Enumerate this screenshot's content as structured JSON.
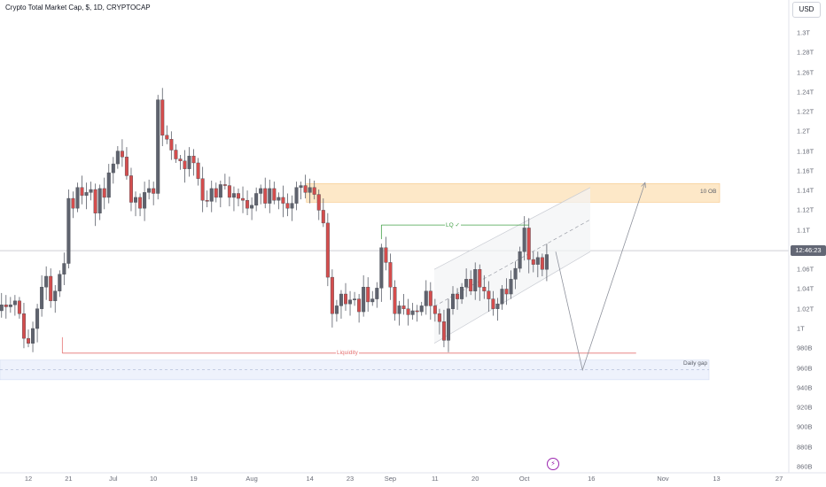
{
  "header": {
    "title": "Crypto Total Market Cap, $, 1D, CRYPTOCAP",
    "currency_button": "USD"
  },
  "price_tag": "12:46:23",
  "icons": {
    "event": "flash-icon"
  },
  "chart_data": {
    "type": "candlestick",
    "title": "Crypto Total Market Cap, $, 1D, CRYPTOCAP",
    "currency": "USD",
    "y_unit": "USD",
    "ylim": [
      855000000000,
      1320000000000
    ],
    "y_ticks": [
      {
        "value": 860000000000,
        "label": "860B"
      },
      {
        "value": 880000000000,
        "label": "880B"
      },
      {
        "value": 900000000000,
        "label": "900B"
      },
      {
        "value": 920000000000,
        "label": "920B"
      },
      {
        "value": 940000000000,
        "label": "940B"
      },
      {
        "value": 960000000000,
        "label": "960B"
      },
      {
        "value": 980000000000,
        "label": "980B"
      },
      {
        "value": 1000000000000,
        "label": "1T"
      },
      {
        "value": 1020000000000,
        "label": "1.02T"
      },
      {
        "value": 1040000000000,
        "label": "1.04T"
      },
      {
        "value": 1060000000000,
        "label": "1.06T"
      },
      {
        "value": 1080000000000,
        "label": "1.08T"
      },
      {
        "value": 1100000000000,
        "label": "1.1T"
      },
      {
        "value": 1120000000000,
        "label": "1.12T"
      },
      {
        "value": 1140000000000,
        "label": "1.14T"
      },
      {
        "value": 1160000000000,
        "label": "1.16T"
      },
      {
        "value": 1180000000000,
        "label": "1.18T"
      },
      {
        "value": 1200000000000,
        "label": "1.2T"
      },
      {
        "value": 1220000000000,
        "label": "1.22T"
      },
      {
        "value": 1240000000000,
        "label": "1.24T"
      },
      {
        "value": 1260000000000,
        "label": "1.26T"
      },
      {
        "value": 1280000000000,
        "label": "1.28T"
      },
      {
        "value": 1300000000000,
        "label": "1.3T"
      }
    ],
    "x_ticks": [
      {
        "date": "2023-06-12",
        "label": "12"
      },
      {
        "date": "2023-06-21",
        "label": "21"
      },
      {
        "date": "2023-07-01",
        "label": "Jul"
      },
      {
        "date": "2023-07-10",
        "label": "10"
      },
      {
        "date": "2023-07-19",
        "label": "19"
      },
      {
        "date": "2023-08-01",
        "label": "Aug"
      },
      {
        "date": "2023-08-14",
        "label": "14"
      },
      {
        "date": "2023-08-23",
        "label": "23"
      },
      {
        "date": "2023-09-01",
        "label": "Sep"
      },
      {
        "date": "2023-09-11",
        "label": "11"
      },
      {
        "date": "2023-09-20",
        "label": "20"
      },
      {
        "date": "2023-10-01",
        "label": "Oct"
      },
      {
        "date": "2023-10-16",
        "label": "16"
      },
      {
        "date": "2023-11-01",
        "label": "Nov"
      },
      {
        "date": "2023-11-13",
        "label": "13"
      },
      {
        "date": "2023-11-27",
        "label": "27"
      }
    ],
    "current_price": 1079000000000,
    "closes_B": [
      1101,
      1080,
      1062,
      1034,
      1018,
      1024,
      1022,
      1024,
      1028,
      1015,
      990,
      985,
      1000,
      1020,
      1042,
      1053,
      1028,
      1038,
      1055,
      1066,
      1132,
      1122,
      1143,
      1135,
      1138,
      1141,
      1117,
      1142,
      1133,
      1158,
      1167,
      1180,
      1174,
      1155,
      1128,
      1133,
      1122,
      1138,
      1142,
      1137,
      1232,
      1196,
      1192,
      1181,
      1172,
      1170,
      1162,
      1175,
      1168,
      1152,
      1130,
      1129,
      1142,
      1133,
      1146,
      1145,
      1133,
      1137,
      1132,
      1130,
      1122,
      1125,
      1137,
      1142,
      1127,
      1142,
      1130,
      1133,
      1127,
      1122,
      1127,
      1143,
      1145,
      1138,
      1143,
      1136,
      1120,
      1107,
      1052,
      1015,
      1023,
      1035,
      1025,
      1029,
      1030,
      1017,
      1042,
      1027,
      1030,
      1041,
      1082,
      1067,
      1042,
      1015,
      1023,
      1020,
      1014,
      1018,
      1017,
      1023,
      1038,
      1023,
      1015,
      1007,
      988,
      1020,
      1035,
      1030,
      1042,
      1050,
      1038,
      1060,
      1042,
      1038,
      1030,
      1020,
      1025,
      1040,
      1035,
      1050,
      1061,
      1078,
      1102,
      1070,
      1065,
      1072,
      1060,
      1075
    ],
    "zones": [
      {
        "label": "10 OB",
        "from": 1128000000000,
        "to": 1147000000000,
        "start": "2023-08-14"
      },
      {
        "label": "Daily gap",
        "from": 948000000000,
        "to": 968000000000,
        "start": "2023-06-01"
      }
    ],
    "levels": [
      {
        "label": "Liquidity",
        "value": 975000000000,
        "start": "2023-06-20",
        "end": "2023-10-26"
      },
      {
        "label": "LQ ✓",
        "value": 1105000000000,
        "start": "2023-08-30",
        "end": "2023-10-02"
      }
    ],
    "projection_path": [
      {
        "date": "2023-10-08",
        "value": 1078000000000
      },
      {
        "date": "2023-10-14",
        "value": 958000000000
      },
      {
        "date": "2023-10-28",
        "value": 1148000000000
      }
    ]
  }
}
